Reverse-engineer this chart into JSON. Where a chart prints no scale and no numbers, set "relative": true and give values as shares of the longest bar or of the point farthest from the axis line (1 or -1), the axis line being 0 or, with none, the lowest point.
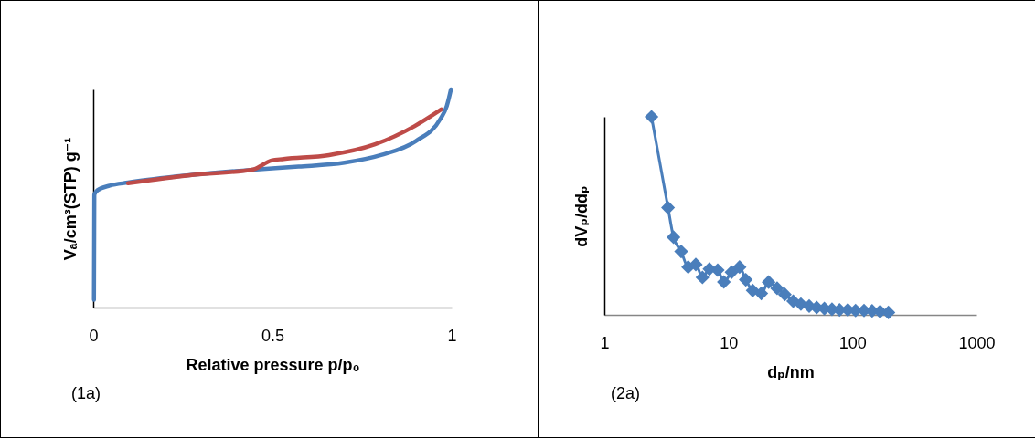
{
  "chart_data": [
    {
      "type": "line",
      "xlabel": "Relative pressure p/p₀",
      "ylabel": "Vₐ/cm³(STP) g⁻¹",
      "relative": true,
      "xlim": [
        0,
        1
      ],
      "xticks": [
        0,
        0.5,
        1
      ],
      "grid": false,
      "legend": false,
      "marker": "none",
      "line_style": "solid",
      "annotations": [
        "(1a)"
      ],
      "series": [
        {
          "color": "#4a7ebb",
          "x": [
            0.002,
            0.003,
            0.012,
            0.046,
            0.097,
            0.233,
            0.446,
            0.573,
            0.701,
            0.803,
            0.901,
            0.969,
            0.986,
            0.998
          ],
          "values": [
            0.036,
            0.518,
            0.538,
            0.559,
            0.573,
            0.601,
            0.632,
            0.646,
            0.664,
            0.699,
            0.764,
            0.866,
            0.922,
            1.0
          ]
        },
        {
          "color": "#be4b48",
          "x": [
            0.097,
            0.276,
            0.446,
            0.497,
            0.531,
            0.658,
            0.786,
            0.896,
            0.971
          ],
          "values": [
            0.57,
            0.608,
            0.633,
            0.674,
            0.681,
            0.699,
            0.748,
            0.831,
            0.908
          ]
        }
      ]
    },
    {
      "type": "line",
      "xlabel": "dₚ/nm",
      "ylabel": "dVₚ/ddₚ",
      "relative": true,
      "log": "x",
      "xlim": [
        1,
        1000
      ],
      "xticks": [
        1,
        10,
        100,
        1000
      ],
      "grid": false,
      "legend": false,
      "marker": "diamond",
      "line_style": "solid",
      "annotations": [
        "(2a)"
      ],
      "series": [
        {
          "color": "#4a7ebb",
          "x": [
            2.4,
            3.26,
            3.61,
            4.16,
            4.74,
            5.46,
            6.18,
            7.03,
            8.2,
            9.19,
            10.6,
            12.3,
            13.8,
            15.7,
            18.4,
            21.1,
            24.7,
            28.5,
            33.3,
            38.4,
            44.8,
            51.5,
            59.4,
            68.4,
            78.7,
            91.8,
            106,
            124,
            144,
            167,
            195
          ],
          "values": [
            1.0,
            0.541,
            0.392,
            0.32,
            0.241,
            0.254,
            0.189,
            0.231,
            0.226,
            0.166,
            0.215,
            0.241,
            0.177,
            0.123,
            0.108,
            0.165,
            0.134,
            0.103,
            0.069,
            0.054,
            0.044,
            0.037,
            0.032,
            0.028,
            0.025,
            0.025,
            0.022,
            0.022,
            0.02,
            0.017,
            0.012
          ]
        }
      ]
    }
  ]
}
